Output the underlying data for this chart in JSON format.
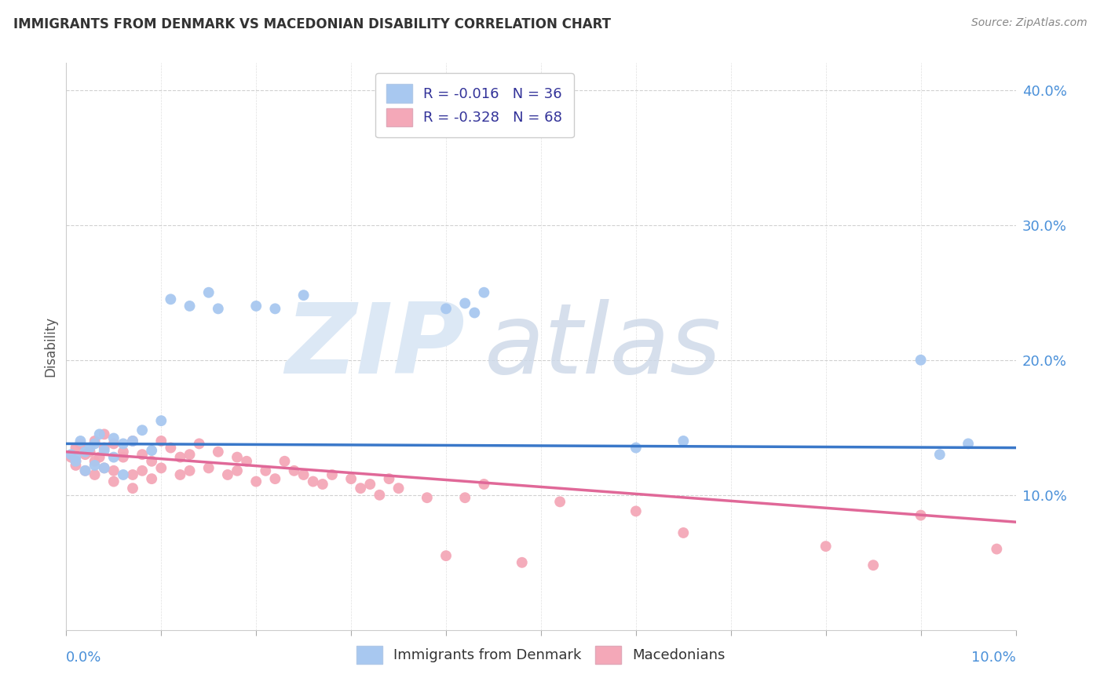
{
  "title": "IMMIGRANTS FROM DENMARK VS MACEDONIAN DISABILITY CORRELATION CHART",
  "source": "Source: ZipAtlas.com",
  "ylabel": "Disability",
  "xlim": [
    0.0,
    0.1
  ],
  "ylim": [
    0.0,
    0.42
  ],
  "yticks": [
    0.1,
    0.2,
    0.3,
    0.4
  ],
  "ytick_labels": [
    "10.0%",
    "20.0%",
    "30.0%",
    "40.0%"
  ],
  "legend_blue_label": "R = -0.016   N = 36",
  "legend_pink_label": "R = -0.328   N = 68",
  "legend_bottom_blue": "Immigrants from Denmark",
  "legend_bottom_pink": "Macedonians",
  "blue_color": "#a8c8f0",
  "pink_color": "#f4a8b8",
  "blue_line_color": "#3a78c9",
  "pink_line_color": "#e06898",
  "blue_scatter_x": [
    0.0005,
    0.001,
    0.001,
    0.0015,
    0.002,
    0.002,
    0.0025,
    0.003,
    0.003,
    0.0035,
    0.004,
    0.004,
    0.005,
    0.005,
    0.006,
    0.006,
    0.007,
    0.008,
    0.009,
    0.01,
    0.011,
    0.013,
    0.015,
    0.016,
    0.02,
    0.022,
    0.025,
    0.04,
    0.042,
    0.043,
    0.044,
    0.06,
    0.065,
    0.09,
    0.092,
    0.095
  ],
  "blue_scatter_y": [
    0.13,
    0.128,
    0.125,
    0.14,
    0.132,
    0.118,
    0.135,
    0.122,
    0.138,
    0.145,
    0.12,
    0.133,
    0.128,
    0.142,
    0.115,
    0.138,
    0.14,
    0.148,
    0.133,
    0.155,
    0.245,
    0.24,
    0.25,
    0.238,
    0.24,
    0.238,
    0.248,
    0.238,
    0.242,
    0.235,
    0.25,
    0.135,
    0.14,
    0.2,
    0.13,
    0.138
  ],
  "pink_scatter_x": [
    0.0005,
    0.001,
    0.001,
    0.001,
    0.0015,
    0.002,
    0.002,
    0.0025,
    0.003,
    0.003,
    0.003,
    0.0035,
    0.004,
    0.004,
    0.004,
    0.005,
    0.005,
    0.005,
    0.006,
    0.006,
    0.007,
    0.007,
    0.007,
    0.008,
    0.008,
    0.009,
    0.009,
    0.01,
    0.01,
    0.011,
    0.012,
    0.012,
    0.013,
    0.013,
    0.014,
    0.015,
    0.016,
    0.017,
    0.018,
    0.018,
    0.019,
    0.02,
    0.021,
    0.022,
    0.023,
    0.024,
    0.025,
    0.026,
    0.027,
    0.028,
    0.03,
    0.031,
    0.032,
    0.033,
    0.034,
    0.035,
    0.038,
    0.04,
    0.042,
    0.044,
    0.048,
    0.052,
    0.06,
    0.065,
    0.08,
    0.085,
    0.09,
    0.098
  ],
  "pink_scatter_y": [
    0.128,
    0.135,
    0.122,
    0.125,
    0.138,
    0.13,
    0.118,
    0.132,
    0.14,
    0.125,
    0.115,
    0.128,
    0.135,
    0.12,
    0.145,
    0.11,
    0.138,
    0.118,
    0.128,
    0.132,
    0.115,
    0.14,
    0.105,
    0.118,
    0.13,
    0.125,
    0.112,
    0.14,
    0.12,
    0.135,
    0.128,
    0.115,
    0.13,
    0.118,
    0.138,
    0.12,
    0.132,
    0.115,
    0.128,
    0.118,
    0.125,
    0.11,
    0.118,
    0.112,
    0.125,
    0.118,
    0.115,
    0.11,
    0.108,
    0.115,
    0.112,
    0.105,
    0.108,
    0.1,
    0.112,
    0.105,
    0.098,
    0.055,
    0.098,
    0.108,
    0.05,
    0.095,
    0.088,
    0.072,
    0.062,
    0.048,
    0.085,
    0.06
  ],
  "blue_line_x": [
    0.0,
    0.1
  ],
  "blue_line_y": [
    0.138,
    0.135
  ],
  "pink_line_x": [
    0.0,
    0.1
  ],
  "pink_line_y": [
    0.132,
    0.08
  ]
}
